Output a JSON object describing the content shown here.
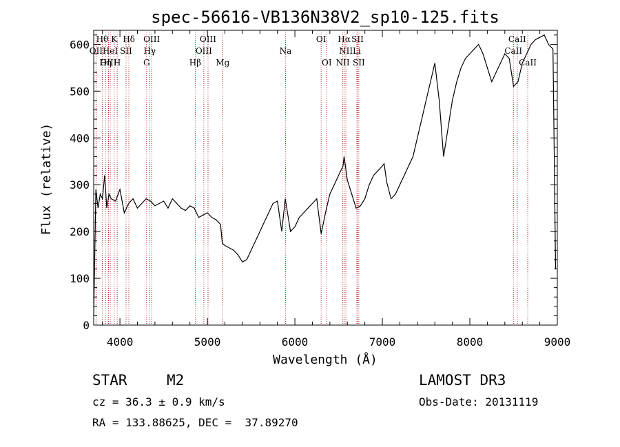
{
  "chart_data": {
    "type": "line",
    "title": "spec-56616-VB136N38V2_sp10-125.fits",
    "xlabel": "Wavelength (Å)",
    "ylabel": "Flux (relative)",
    "xlim": [
      3700,
      9000
    ],
    "ylim": [
      0,
      630
    ],
    "x_ticks": [
      4000,
      5000,
      6000,
      7000,
      8000,
      9000
    ],
    "y_ticks": [
      0,
      100,
      200,
      300,
      400,
      500,
      600
    ],
    "grid": false,
    "color": "#000000",
    "line_marker_color": "#b22222",
    "series": [
      {
        "x": [
          3700,
          3725,
          3750,
          3775,
          3800,
          3825,
          3850,
          3875,
          3900,
          3950,
          4000,
          4050,
          4100,
          4150,
          4200,
          4250,
          4300,
          4350,
          4400,
          4450,
          4500,
          4550,
          4600,
          4650,
          4700,
          4750,
          4800,
          4850,
          4900,
          4950,
          5000,
          5050,
          5100,
          5150,
          5170,
          5200,
          5250,
          5300,
          5350,
          5400,
          5450,
          5500,
          5550,
          5600,
          5650,
          5700,
          5750,
          5800,
          5850,
          5890,
          5950,
          6000,
          6050,
          6100,
          6150,
          6200,
          6250,
          6300,
          6350,
          6400,
          6450,
          6500,
          6550,
          6563,
          6600,
          6650,
          6700,
          6750,
          6800,
          6850,
          6900,
          6950,
          7000,
          7020,
          7050,
          7100,
          7150,
          7200,
          7250,
          7300,
          7350,
          7400,
          7450,
          7500,
          7550,
          7600,
          7650,
          7700,
          7750,
          7800,
          7850,
          7900,
          7950,
          8000,
          8050,
          8100,
          8150,
          8200,
          8250,
          8300,
          8350,
          8400,
          8450,
          8500,
          8550,
          8600,
          8650,
          8700,
          8750,
          8800,
          8850,
          8900,
          8950,
          8980
        ],
        "y": [
          20,
          290,
          250,
          280,
          270,
          320,
          250,
          280,
          270,
          265,
          290,
          240,
          260,
          270,
          250,
          260,
          270,
          265,
          255,
          260,
          265,
          250,
          270,
          260,
          250,
          245,
          255,
          250,
          230,
          235,
          240,
          230,
          225,
          215,
          175,
          170,
          165,
          160,
          150,
          135,
          140,
          160,
          180,
          200,
          220,
          240,
          260,
          265,
          200,
          270,
          200,
          210,
          230,
          240,
          250,
          260,
          270,
          195,
          240,
          280,
          300,
          320,
          340,
          360,
          310,
          280,
          250,
          255,
          270,
          300,
          320,
          330,
          340,
          345,
          305,
          270,
          280,
          300,
          320,
          340,
          360,
          400,
          440,
          480,
          520,
          560,
          480,
          360,
          420,
          480,
          520,
          550,
          570,
          580,
          590,
          600,
          580,
          550,
          520,
          540,
          560,
          580,
          570,
          510,
          520,
          560,
          580,
          600,
          610,
          615,
          620,
          600,
          590,
          120
        ]
      }
    ],
    "spectral_lines": [
      {
        "label": "Hθ",
        "x": 3798,
        "row": 1
      },
      {
        "label": "K",
        "x": 3934,
        "row": 1
      },
      {
        "label": "Hδ",
        "x": 4102,
        "row": 1
      },
      {
        "label": "OIII",
        "x": 4363,
        "row": 1
      },
      {
        "label": "OIII",
        "x": 5007,
        "row": 1
      },
      {
        "label": "OI",
        "x": 6300,
        "row": 1
      },
      {
        "label": "Hα",
        "x": 6563,
        "row": 1
      },
      {
        "label": "SII",
        "x": 6716,
        "row": 1
      },
      {
        "label": "CaII",
        "x": 8542,
        "row": 1
      },
      {
        "label": "OII",
        "x": 3727,
        "row": 2
      },
      {
        "label": "HeI",
        "x": 3889,
        "row": 2
      },
      {
        "label": "SII",
        "x": 4070,
        "row": 2
      },
      {
        "label": "Hγ",
        "x": 4340,
        "row": 2
      },
      {
        "label": "OIII",
        "x": 4959,
        "row": 2
      },
      {
        "label": "Na",
        "x": 5893,
        "row": 2
      },
      {
        "label": "NII",
        "x": 6583,
        "row": 2
      },
      {
        "label": "Li",
        "x": 6708,
        "row": 2
      },
      {
        "label": "CaII",
        "x": 8498,
        "row": 2
      },
      {
        "label": "OIII",
        "x": 3869,
        "row": 3
      },
      {
        "label": "Hη",
        "x": 3835,
        "row": 3
      },
      {
        "label": "H",
        "x": 3969,
        "row": 3
      },
      {
        "label": "G",
        "x": 4305,
        "row": 3
      },
      {
        "label": "Hβ",
        "x": 4861,
        "row": 3
      },
      {
        "label": "Mg",
        "x": 5175,
        "row": 3
      },
      {
        "label": "OI",
        "x": 6364,
        "row": 3
      },
      {
        "label": "NII",
        "x": 6548,
        "row": 3
      },
      {
        "label": "SII",
        "x": 6731,
        "row": 3
      },
      {
        "label": "CaII",
        "x": 8662,
        "row": 3
      }
    ]
  },
  "info": {
    "object_class": "STAR",
    "subclass": "M2",
    "survey": "LAMOST DR3",
    "redshift": "cz = 36.3 ± 0.9 km/s",
    "obs_date": "Obs-Date: 20131119",
    "coords": "RA = 133.88625, DEC =  37.89270"
  }
}
